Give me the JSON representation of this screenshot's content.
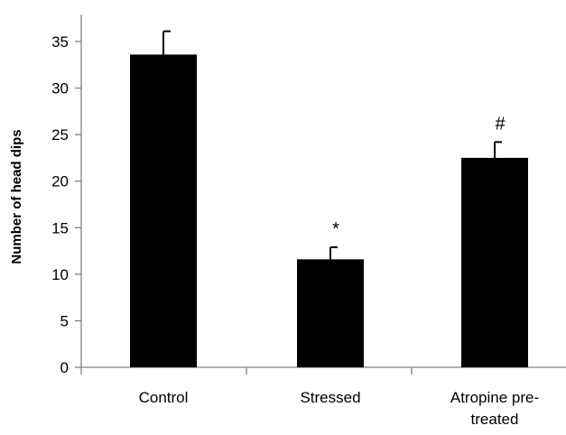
{
  "chart_data": {
    "type": "bar",
    "title": "",
    "xlabel": "",
    "ylabel": "Number of head dips",
    "ylim": [
      0,
      35
    ],
    "yticks": [
      0,
      5,
      10,
      15,
      20,
      25,
      30,
      35
    ],
    "grid": false,
    "legend": "none",
    "bar_color": "#000000",
    "categories": [
      [
        "Control"
      ],
      [
        "Stressed"
      ],
      [
        "Atropine pre-",
        "treated"
      ]
    ],
    "values": [
      33.6,
      11.6,
      22.5
    ],
    "errors": [
      2.5,
      1.3,
      1.7
    ],
    "significance": [
      "",
      "*",
      "#"
    ]
  }
}
